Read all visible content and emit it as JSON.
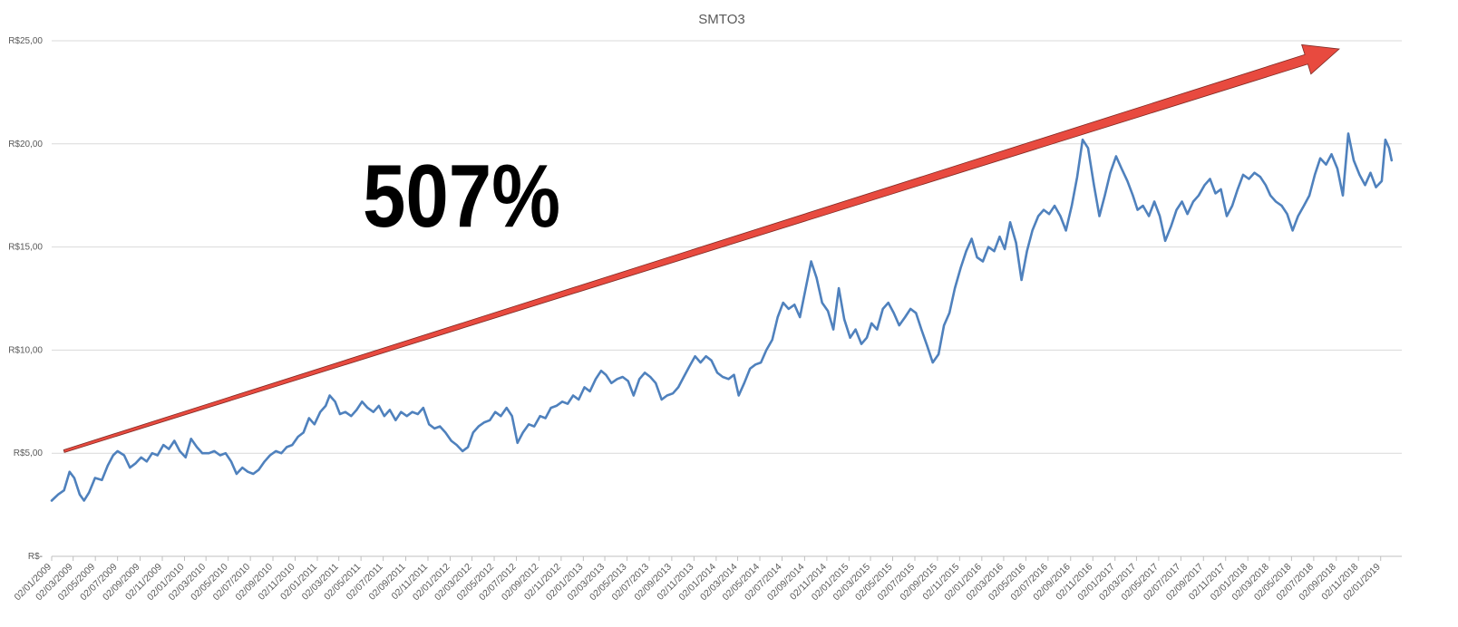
{
  "chart_data": {
    "type": "line",
    "title": "SMTO3",
    "xlabel": "",
    "ylabel": "",
    "ylim": [
      0,
      25
    ],
    "y_ticks": [
      {
        "value": 0,
        "label": "R$-"
      },
      {
        "value": 5,
        "label": "R$5,00"
      },
      {
        "value": 10,
        "label": "R$10,00"
      },
      {
        "value": 15,
        "label": "R$15,00"
      },
      {
        "value": 20,
        "label": "R$20,00"
      },
      {
        "value": 25,
        "label": "R$25,00"
      }
    ],
    "x_tick_labels": [
      "02/01/2009",
      "02/03/2009",
      "02/05/2009",
      "02/07/2009",
      "02/09/2009",
      "02/11/2009",
      "02/01/2010",
      "02/03/2010",
      "02/05/2010",
      "02/07/2010",
      "02/09/2010",
      "02/11/2010",
      "02/01/2011",
      "02/03/2011",
      "02/05/2011",
      "02/07/2011",
      "02/09/2011",
      "02/11/2011",
      "02/01/2012",
      "02/03/2012",
      "02/05/2012",
      "02/07/2012",
      "02/09/2012",
      "02/11/2012",
      "02/01/2013",
      "02/03/2013",
      "02/05/2013",
      "02/07/2013",
      "02/09/2013",
      "02/11/2013",
      "02/01/2014",
      "02/03/2014",
      "02/05/2014",
      "02/07/2014",
      "02/09/2014",
      "02/11/2014",
      "02/01/2015",
      "02/03/2015",
      "02/05/2015",
      "02/07/2015",
      "02/09/2015",
      "02/11/2015",
      "02/01/2016",
      "02/03/2016",
      "02/05/2016",
      "02/07/2016",
      "02/09/2016",
      "02/11/2016",
      "02/01/2017",
      "02/03/2017",
      "02/05/2017",
      "02/07/2017",
      "02/09/2017",
      "02/11/2017",
      "02/01/2018",
      "02/03/2018",
      "02/05/2018",
      "02/07/2018",
      "02/09/2018",
      "02/11/2018",
      "02/01/2019"
    ],
    "series": [
      {
        "color": "#4f81bd",
        "points": [
          [
            "2009-01-02",
            2.7
          ],
          [
            "2009-01-20",
            3.0
          ],
          [
            "2009-02-05",
            3.2
          ],
          [
            "2009-02-20",
            4.1
          ],
          [
            "2009-03-05",
            3.8
          ],
          [
            "2009-03-20",
            3.0
          ],
          [
            "2009-04-01",
            2.7
          ],
          [
            "2009-04-15",
            3.1
          ],
          [
            "2009-05-01",
            3.8
          ],
          [
            "2009-05-20",
            3.7
          ],
          [
            "2009-06-05",
            4.4
          ],
          [
            "2009-06-20",
            4.9
          ],
          [
            "2009-07-02",
            5.1
          ],
          [
            "2009-07-20",
            4.9
          ],
          [
            "2009-08-05",
            4.3
          ],
          [
            "2009-08-20",
            4.5
          ],
          [
            "2009-09-05",
            4.8
          ],
          [
            "2009-09-20",
            4.6
          ],
          [
            "2009-10-05",
            5.0
          ],
          [
            "2009-10-20",
            4.9
          ],
          [
            "2009-11-05",
            5.4
          ],
          [
            "2009-11-20",
            5.2
          ],
          [
            "2009-12-05",
            5.6
          ],
          [
            "2009-12-20",
            5.1
          ],
          [
            "2010-01-05",
            4.8
          ],
          [
            "2010-01-20",
            5.7
          ],
          [
            "2010-02-05",
            5.3
          ],
          [
            "2010-02-20",
            5.0
          ],
          [
            "2010-03-10",
            5.0
          ],
          [
            "2010-03-25",
            5.1
          ],
          [
            "2010-04-10",
            4.9
          ],
          [
            "2010-04-25",
            5.0
          ],
          [
            "2010-05-10",
            4.6
          ],
          [
            "2010-05-25",
            4.0
          ],
          [
            "2010-06-10",
            4.3
          ],
          [
            "2010-06-25",
            4.1
          ],
          [
            "2010-07-10",
            4.0
          ],
          [
            "2010-07-25",
            4.2
          ],
          [
            "2010-08-10",
            4.6
          ],
          [
            "2010-08-25",
            4.9
          ],
          [
            "2010-09-10",
            5.1
          ],
          [
            "2010-09-25",
            5.0
          ],
          [
            "2010-10-10",
            5.3
          ],
          [
            "2010-10-25",
            5.4
          ],
          [
            "2010-11-10",
            5.8
          ],
          [
            "2010-11-25",
            6.0
          ],
          [
            "2010-12-10",
            6.7
          ],
          [
            "2010-12-25",
            6.4
          ],
          [
            "2011-01-10",
            7.0
          ],
          [
            "2011-01-25",
            7.3
          ],
          [
            "2011-02-05",
            7.8
          ],
          [
            "2011-02-20",
            7.5
          ],
          [
            "2011-03-05",
            6.9
          ],
          [
            "2011-03-20",
            7.0
          ],
          [
            "2011-04-05",
            6.8
          ],
          [
            "2011-04-20",
            7.1
          ],
          [
            "2011-05-05",
            7.5
          ],
          [
            "2011-05-20",
            7.2
          ],
          [
            "2011-06-05",
            7.0
          ],
          [
            "2011-06-20",
            7.3
          ],
          [
            "2011-07-05",
            6.8
          ],
          [
            "2011-07-20",
            7.1
          ],
          [
            "2011-08-05",
            6.6
          ],
          [
            "2011-08-20",
            7.0
          ],
          [
            "2011-09-05",
            6.8
          ],
          [
            "2011-09-20",
            7.0
          ],
          [
            "2011-10-05",
            6.9
          ],
          [
            "2011-10-20",
            7.2
          ],
          [
            "2011-11-05",
            6.4
          ],
          [
            "2011-11-20",
            6.2
          ],
          [
            "2011-12-05",
            6.3
          ],
          [
            "2011-12-20",
            6.0
          ],
          [
            "2012-01-05",
            5.6
          ],
          [
            "2012-01-20",
            5.4
          ],
          [
            "2012-02-05",
            5.1
          ],
          [
            "2012-02-20",
            5.3
          ],
          [
            "2012-03-05",
            6.0
          ],
          [
            "2012-03-20",
            6.3
          ],
          [
            "2012-04-05",
            6.5
          ],
          [
            "2012-04-20",
            6.6
          ],
          [
            "2012-05-05",
            7.0
          ],
          [
            "2012-05-20",
            6.8
          ],
          [
            "2012-06-05",
            7.2
          ],
          [
            "2012-06-20",
            6.8
          ],
          [
            "2012-07-05",
            5.5
          ],
          [
            "2012-07-20",
            6.0
          ],
          [
            "2012-08-05",
            6.4
          ],
          [
            "2012-08-20",
            6.3
          ],
          [
            "2012-09-05",
            6.8
          ],
          [
            "2012-09-20",
            6.7
          ],
          [
            "2012-10-05",
            7.2
          ],
          [
            "2012-10-20",
            7.3
          ],
          [
            "2012-11-05",
            7.5
          ],
          [
            "2012-11-20",
            7.4
          ],
          [
            "2012-12-05",
            7.8
          ],
          [
            "2012-12-20",
            7.6
          ],
          [
            "2013-01-05",
            8.2
          ],
          [
            "2013-01-20",
            8.0
          ],
          [
            "2013-02-05",
            8.6
          ],
          [
            "2013-02-20",
            9.0
          ],
          [
            "2013-03-05",
            8.8
          ],
          [
            "2013-03-20",
            8.4
          ],
          [
            "2013-04-05",
            8.6
          ],
          [
            "2013-04-20",
            8.7
          ],
          [
            "2013-05-05",
            8.5
          ],
          [
            "2013-05-20",
            7.8
          ],
          [
            "2013-06-05",
            8.6
          ],
          [
            "2013-06-20",
            8.9
          ],
          [
            "2013-07-05",
            8.7
          ],
          [
            "2013-07-20",
            8.4
          ],
          [
            "2013-08-05",
            7.6
          ],
          [
            "2013-08-20",
            7.8
          ],
          [
            "2013-09-05",
            7.9
          ],
          [
            "2013-09-20",
            8.2
          ],
          [
            "2013-10-05",
            8.7
          ],
          [
            "2013-10-20",
            9.2
          ],
          [
            "2013-11-05",
            9.7
          ],
          [
            "2013-11-20",
            9.4
          ],
          [
            "2013-12-05",
            9.7
          ],
          [
            "2013-12-20",
            9.5
          ],
          [
            "2014-01-05",
            8.9
          ],
          [
            "2014-01-20",
            8.7
          ],
          [
            "2014-02-05",
            8.6
          ],
          [
            "2014-02-20",
            8.8
          ],
          [
            "2014-03-05",
            7.8
          ],
          [
            "2014-03-20",
            8.4
          ],
          [
            "2014-04-05",
            9.1
          ],
          [
            "2014-04-20",
            9.3
          ],
          [
            "2014-05-05",
            9.4
          ],
          [
            "2014-05-20",
            10.0
          ],
          [
            "2014-06-05",
            10.5
          ],
          [
            "2014-06-20",
            11.6
          ],
          [
            "2014-07-05",
            12.3
          ],
          [
            "2014-07-20",
            12.0
          ],
          [
            "2014-08-05",
            12.2
          ],
          [
            "2014-08-20",
            11.6
          ],
          [
            "2014-09-05",
            13.0
          ],
          [
            "2014-09-20",
            14.3
          ],
          [
            "2014-10-05",
            13.5
          ],
          [
            "2014-10-20",
            12.3
          ],
          [
            "2014-11-05",
            11.9
          ],
          [
            "2014-11-20",
            11.0
          ],
          [
            "2014-12-05",
            13.0
          ],
          [
            "2014-12-20",
            11.5
          ],
          [
            "2015-01-05",
            10.6
          ],
          [
            "2015-01-20",
            11.0
          ],
          [
            "2015-02-05",
            10.3
          ],
          [
            "2015-02-20",
            10.6
          ],
          [
            "2015-03-05",
            11.3
          ],
          [
            "2015-03-20",
            11.0
          ],
          [
            "2015-04-05",
            12.0
          ],
          [
            "2015-04-20",
            12.3
          ],
          [
            "2015-05-05",
            11.8
          ],
          [
            "2015-05-20",
            11.2
          ],
          [
            "2015-06-05",
            11.6
          ],
          [
            "2015-06-20",
            12.0
          ],
          [
            "2015-07-05",
            11.8
          ],
          [
            "2015-07-20",
            11.0
          ],
          [
            "2015-08-05",
            10.2
          ],
          [
            "2015-08-20",
            9.4
          ],
          [
            "2015-09-05",
            9.8
          ],
          [
            "2015-09-20",
            11.2
          ],
          [
            "2015-10-05",
            11.8
          ],
          [
            "2015-10-20",
            13.0
          ],
          [
            "2015-11-05",
            14.0
          ],
          [
            "2015-11-20",
            14.8
          ],
          [
            "2015-12-05",
            15.4
          ],
          [
            "2015-12-20",
            14.5
          ],
          [
            "2016-01-05",
            14.3
          ],
          [
            "2016-01-20",
            15.0
          ],
          [
            "2016-02-05",
            14.8
          ],
          [
            "2016-02-20",
            15.5
          ],
          [
            "2016-03-05",
            14.9
          ],
          [
            "2016-03-20",
            16.2
          ],
          [
            "2016-04-05",
            15.2
          ],
          [
            "2016-04-20",
            13.4
          ],
          [
            "2016-05-05",
            14.8
          ],
          [
            "2016-05-20",
            15.8
          ],
          [
            "2016-06-05",
            16.5
          ],
          [
            "2016-06-20",
            16.8
          ],
          [
            "2016-07-05",
            16.6
          ],
          [
            "2016-07-20",
            17.0
          ],
          [
            "2016-08-05",
            16.5
          ],
          [
            "2016-08-20",
            15.8
          ],
          [
            "2016-09-05",
            17.0
          ],
          [
            "2016-09-20",
            18.4
          ],
          [
            "2016-10-05",
            20.2
          ],
          [
            "2016-10-20",
            19.8
          ],
          [
            "2016-11-05",
            18.0
          ],
          [
            "2016-11-20",
            16.5
          ],
          [
            "2016-12-05",
            17.5
          ],
          [
            "2016-12-20",
            18.6
          ],
          [
            "2017-01-05",
            19.4
          ],
          [
            "2017-01-20",
            18.8
          ],
          [
            "2017-02-05",
            18.2
          ],
          [
            "2017-02-20",
            17.5
          ],
          [
            "2017-03-05",
            16.8
          ],
          [
            "2017-03-20",
            17.0
          ],
          [
            "2017-04-05",
            16.5
          ],
          [
            "2017-04-20",
            17.2
          ],
          [
            "2017-05-05",
            16.5
          ],
          [
            "2017-05-20",
            15.3
          ],
          [
            "2017-06-05",
            16.0
          ],
          [
            "2017-06-20",
            16.8
          ],
          [
            "2017-07-05",
            17.2
          ],
          [
            "2017-07-20",
            16.6
          ],
          [
            "2017-08-05",
            17.2
          ],
          [
            "2017-08-20",
            17.5
          ],
          [
            "2017-09-05",
            18.0
          ],
          [
            "2017-09-20",
            18.3
          ],
          [
            "2017-10-05",
            17.6
          ],
          [
            "2017-10-20",
            17.8
          ],
          [
            "2017-11-05",
            16.5
          ],
          [
            "2017-11-20",
            17.0
          ],
          [
            "2017-12-05",
            17.8
          ],
          [
            "2017-12-20",
            18.5
          ],
          [
            "2018-01-05",
            18.3
          ],
          [
            "2018-01-20",
            18.6
          ],
          [
            "2018-02-05",
            18.4
          ],
          [
            "2018-02-20",
            18.0
          ],
          [
            "2018-03-05",
            17.5
          ],
          [
            "2018-03-20",
            17.2
          ],
          [
            "2018-04-05",
            17.0
          ],
          [
            "2018-04-20",
            16.6
          ],
          [
            "2018-05-05",
            15.8
          ],
          [
            "2018-05-20",
            16.5
          ],
          [
            "2018-06-05",
            17.0
          ],
          [
            "2018-06-20",
            17.5
          ],
          [
            "2018-07-05",
            18.5
          ],
          [
            "2018-07-20",
            19.3
          ],
          [
            "2018-08-05",
            19.0
          ],
          [
            "2018-08-20",
            19.5
          ],
          [
            "2018-09-05",
            18.8
          ],
          [
            "2018-09-20",
            17.5
          ],
          [
            "2018-10-05",
            20.5
          ],
          [
            "2018-10-20",
            19.2
          ],
          [
            "2018-11-05",
            18.5
          ],
          [
            "2018-11-20",
            18.0
          ],
          [
            "2018-12-05",
            18.6
          ],
          [
            "2018-12-20",
            17.9
          ],
          [
            "2019-01-05",
            18.2
          ],
          [
            "2019-01-15",
            20.2
          ],
          [
            "2019-01-25",
            19.8
          ],
          [
            "2019-02-01",
            19.2
          ]
        ]
      }
    ],
    "annotations": [
      {
        "text": "507%",
        "type": "arrow",
        "color": "#e84a3f",
        "from": [
          "2009-02-05",
          5.1
        ],
        "to": [
          "2018-09-10",
          24.6
        ]
      }
    ],
    "grid": true,
    "legend": "none"
  }
}
